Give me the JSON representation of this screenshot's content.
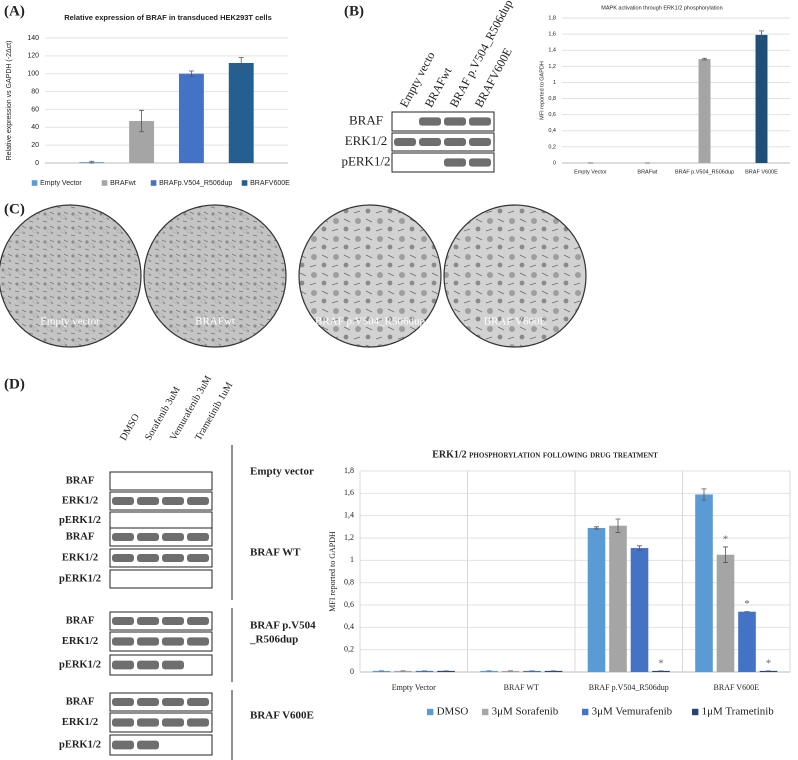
{
  "panels": {
    "a": "(A)",
    "b": "(B)",
    "c": "(C)",
    "d": "(D)"
  },
  "blot_b": {
    "lanes": [
      "Empty vecto",
      "BRAFwt",
      "BRAF p.V504_R506dup",
      "BRAFV600E"
    ],
    "rows": [
      "BRAF",
      "ERK1/2",
      "pERK1/2"
    ]
  },
  "micrographs": [
    "Empty vector",
    "BRAFwt",
    "BRAF p.V504_R506dup",
    "BRAF V600E"
  ],
  "blot_d": {
    "lanes": [
      "DMSO",
      "Sorafenib 3uM",
      "Vemurafenib 3uM",
      "Trametinib 1uM"
    ],
    "groups": [
      {
        "label_lines": [
          "Empty vector"
        ],
        "rows": [
          "BRAF",
          "ERK1/2",
          "pERK1/2"
        ]
      },
      {
        "label_lines": [
          "BRAF WT"
        ],
        "rows": [
          "BRAF",
          "ERK1/2",
          "pERK1/2"
        ]
      },
      {
        "label_lines": [
          "BRAF p.V504",
          "_R506dup"
        ],
        "rows": [
          "BRAF",
          "ERK1/2",
          "pERK1/2"
        ]
      },
      {
        "label_lines": [
          "BRAF V600E"
        ],
        "rows": [
          "BRAF",
          "ERK1/2",
          "pERK1/2"
        ]
      }
    ]
  },
  "chart_data": [
    {
      "type": "bar",
      "title": "Relative expression of BRAF in transduced HEK293T cells",
      "y_label": "Relative expression vs GAPDH (-2Δct)",
      "categories": [
        null
      ],
      "series": [
        {
          "name": "Empty Vector",
          "color": "#5b9bd5",
          "values": [
            1
          ],
          "errors": [
            1
          ]
        },
        {
          "name": "BRAFwt",
          "color": "#a5a5a5",
          "values": [
            47
          ],
          "errors": [
            12
          ]
        },
        {
          "name": "BRAFp.V504_R506dup",
          "color": "#4472c4",
          "values": [
            100
          ],
          "errors": [
            3
          ]
        },
        {
          "name": "BRAFV600E",
          "color": "#255e91",
          "values": [
            112
          ],
          "errors": [
            6
          ]
        }
      ],
      "ylim": [
        0,
        140
      ],
      "yticks": [
        0,
        20,
        40,
        60,
        80,
        100,
        120,
        140
      ],
      "grid": true,
      "legend": "bottom"
    },
    {
      "type": "bar",
      "title": "MAPK activation through ERK1/2 phosphorylation",
      "y_label": "MFI reported to GAPDH",
      "categories": [
        "Empty Vector",
        "BRAFwt",
        "BRAF p.V504_R506dup",
        "BRAF V600E"
      ],
      "values": [
        0,
        0,
        1.29,
        1.59
      ],
      "errors": [
        0,
        0,
        0.01,
        0.05
      ],
      "colors": [
        "#a5a5a5",
        "#a5a5a5",
        "#a5a5a5",
        "#1f4e79"
      ],
      "ylim": [
        0,
        1.8
      ],
      "yticks": [
        0,
        {
          "value": 0.2,
          "label": "0,2"
        },
        {
          "value": 0.4,
          "label": "0,4"
        },
        {
          "value": 0.6,
          "label": "0,6"
        },
        {
          "value": 0.8,
          "label": "0,8"
        },
        1,
        {
          "value": 1.2,
          "label": "1,2"
        },
        {
          "value": 1.4,
          "label": "1,4"
        },
        {
          "value": 1.6,
          "label": "1,6"
        },
        {
          "value": 1.8,
          "label": "1,8"
        }
      ],
      "grid": true
    },
    {
      "type": "bar",
      "title": "ERK1/2 phosphorylation following drug treatment",
      "y_label": "MFI reported to GAPDH",
      "categories": [
        "Empty Vector",
        "BRAF WT",
        "BRAF p.V504_R506dup",
        "BRAF V600E"
      ],
      "series": [
        {
          "name": "DMSO",
          "color": "#5b9bd5",
          "values": [
            0.01,
            0.01,
            1.29,
            1.59
          ],
          "errors": [
            0,
            0,
            0.01,
            0.05
          ],
          "significance": [
            null,
            null,
            null,
            null
          ]
        },
        {
          "name": "3μM Sorafenib",
          "color": "#a5a5a5",
          "values": [
            0.01,
            0.01,
            1.31,
            1.05
          ],
          "errors": [
            0,
            0,
            0.06,
            0.07
          ],
          "significance": [
            null,
            null,
            null,
            "*"
          ]
        },
        {
          "name": "3μM Vemurafenib",
          "color": "#4472c4",
          "values": [
            0.01,
            0.01,
            1.11,
            0.54
          ],
          "errors": [
            0,
            0,
            0.02,
            0
          ],
          "significance": [
            null,
            null,
            null,
            "*"
          ]
        },
        {
          "name": "1μM Trametinib",
          "color": "#264478",
          "values": [
            0.01,
            0.01,
            0.01,
            0.01
          ],
          "errors": [
            0,
            0,
            0,
            0
          ],
          "significance": [
            null,
            null,
            "*",
            "*"
          ]
        }
      ],
      "ylim": [
        0,
        1.8
      ],
      "yticks": [
        0,
        {
          "value": 0.2,
          "label": "0,2"
        },
        {
          "value": 0.4,
          "label": "0,4"
        },
        {
          "value": 0.6,
          "label": "0,6"
        },
        {
          "value": 0.8,
          "label": "0,8"
        },
        1,
        {
          "value": 1.2,
          "label": "1,2"
        },
        {
          "value": 1.4,
          "label": "1,4"
        },
        {
          "value": 1.6,
          "label": "1,6"
        },
        {
          "value": 1.8,
          "label": "1,8"
        }
      ],
      "grid": true,
      "category_separators": true,
      "legend": "bottom"
    }
  ]
}
